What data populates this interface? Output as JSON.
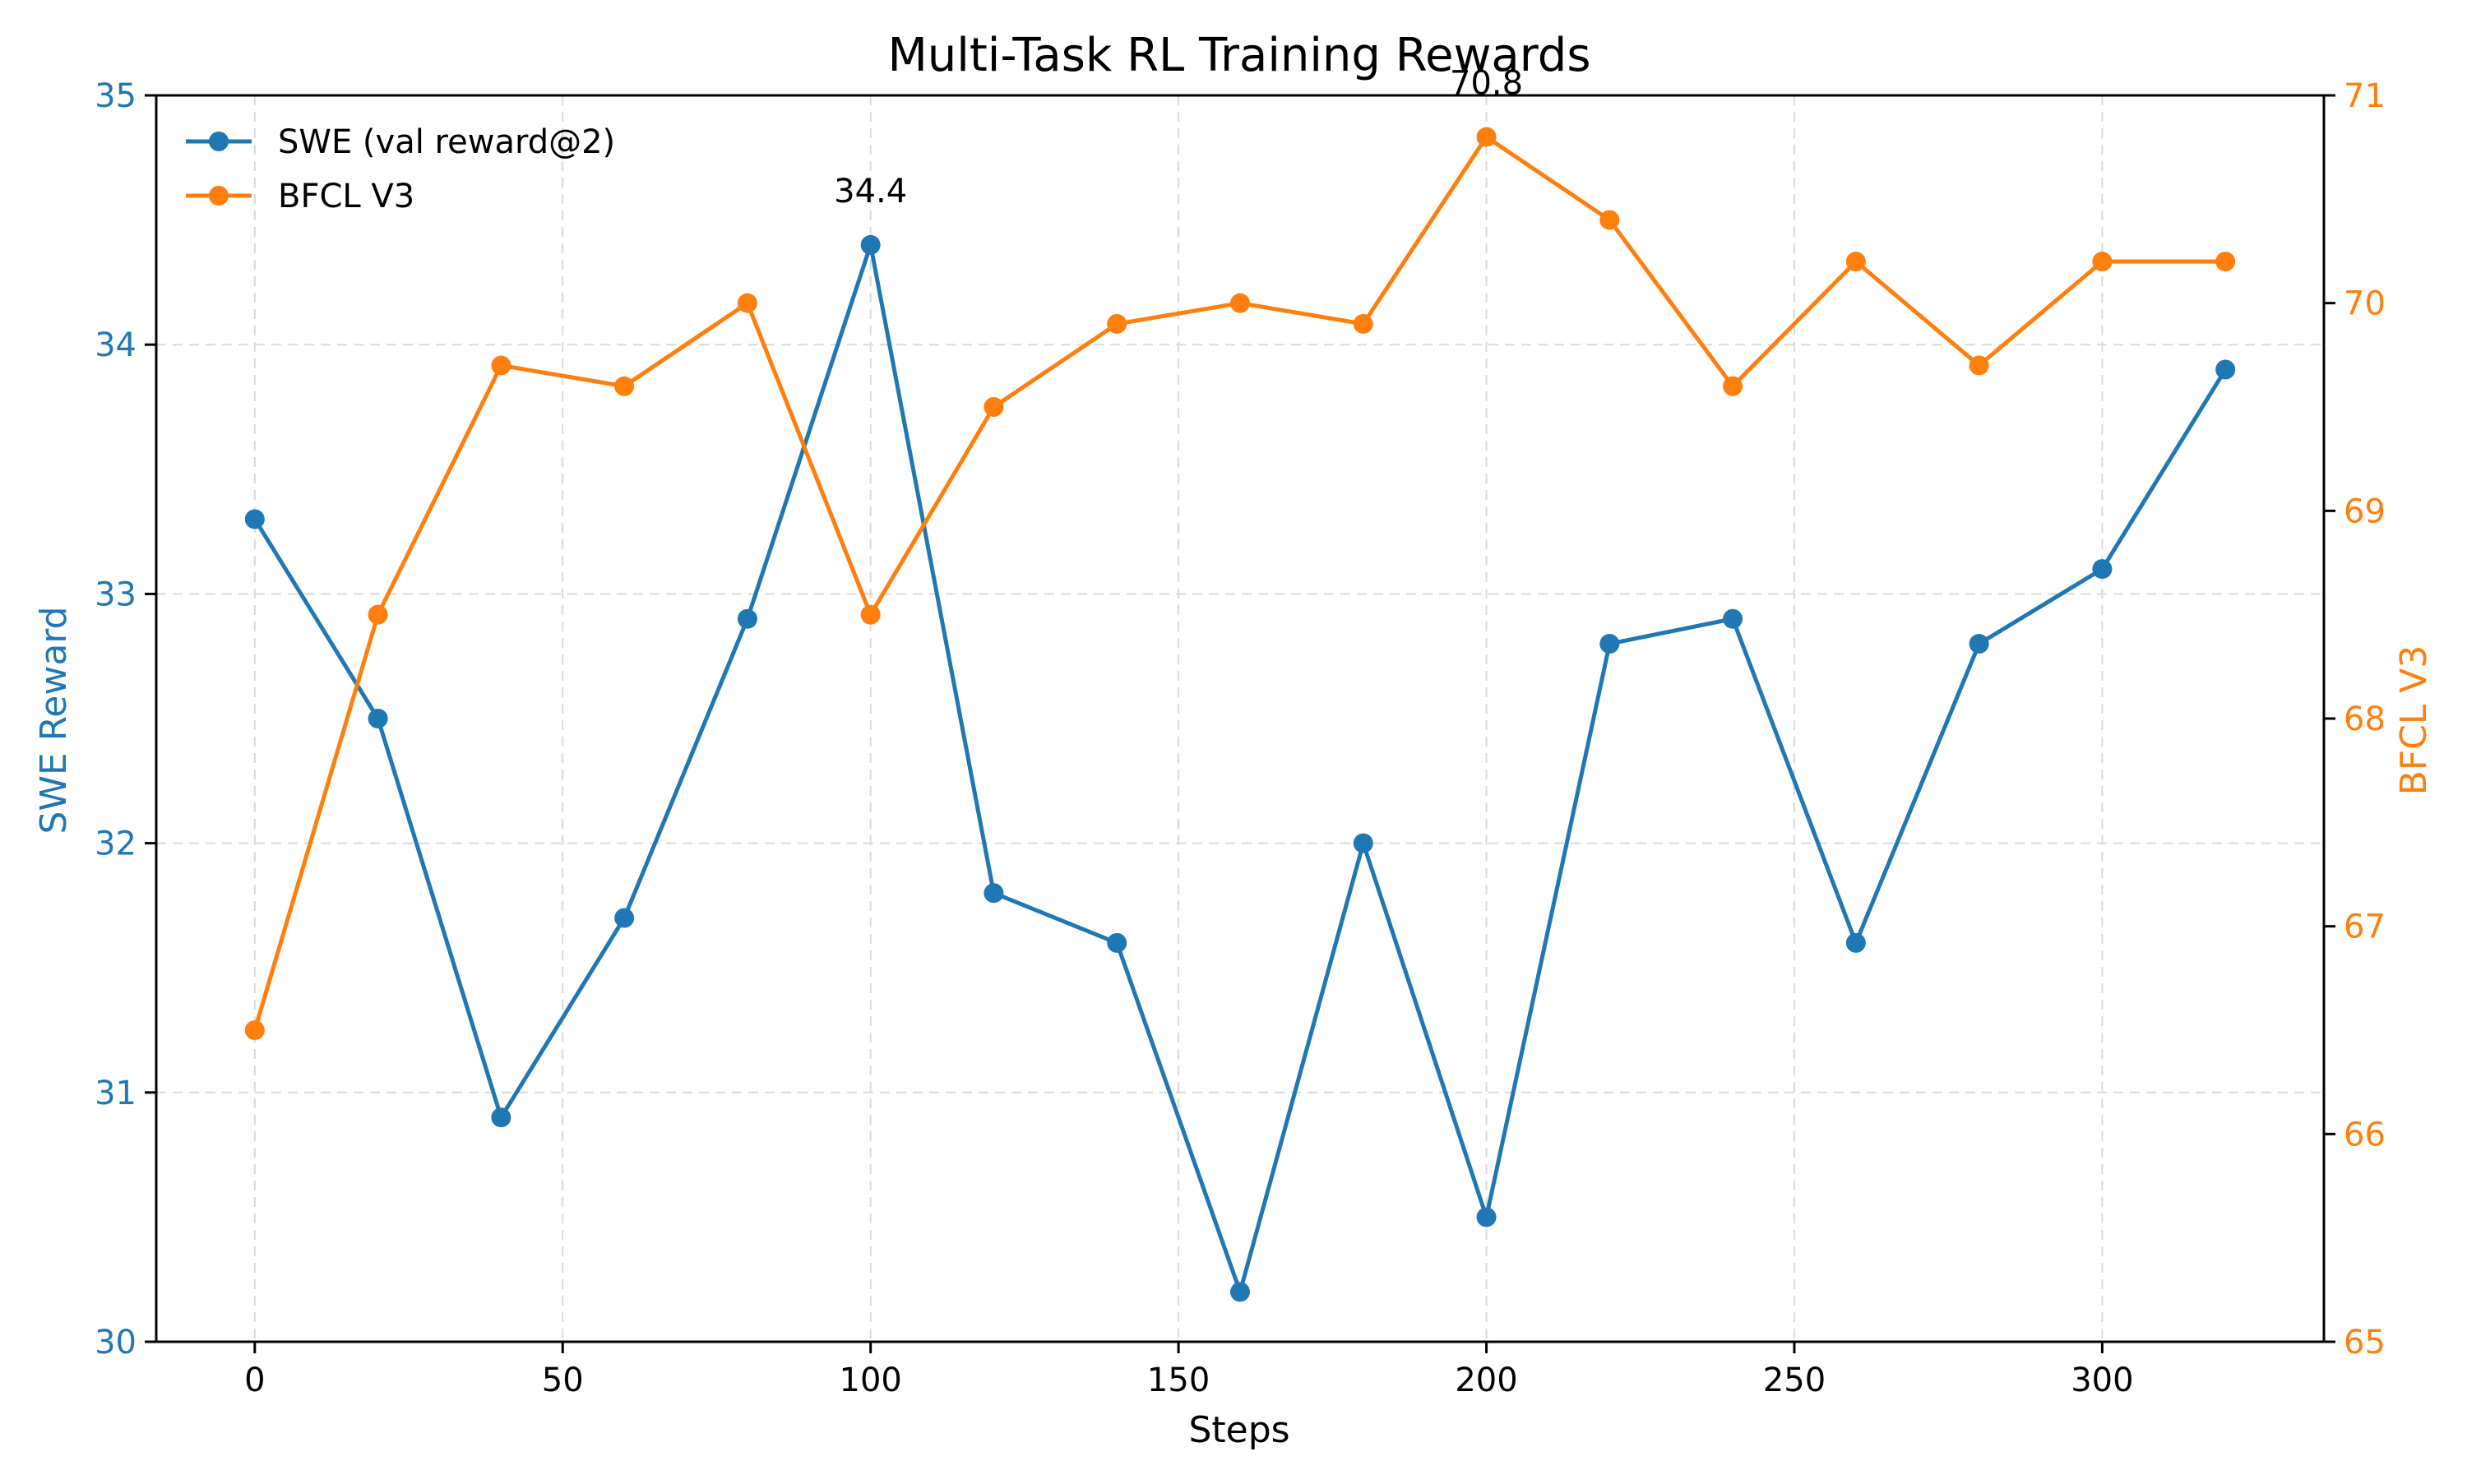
{
  "chart_data": {
    "type": "line",
    "title": "Multi-Task RL Training Rewards",
    "xlabel": "Steps",
    "ylabel_left": "SWE Reward",
    "ylabel_right": "BFCL V3",
    "xlim": [
      -16,
      336
    ],
    "ylim_left": [
      30,
      35
    ],
    "ylim_right": [
      65,
      71
    ],
    "x_ticks": [
      0,
      50,
      100,
      150,
      200,
      250,
      300
    ],
    "y_ticks_left": [
      30,
      31,
      32,
      33,
      34,
      35
    ],
    "y_ticks_right": [
      65,
      66,
      67,
      68,
      69,
      70,
      71
    ],
    "grid": true,
    "legend_position": "top-left",
    "x": [
      0,
      20,
      40,
      60,
      80,
      100,
      120,
      140,
      160,
      180,
      200,
      220,
      240,
      260,
      280,
      300,
      320
    ],
    "series": [
      {
        "name": "SWE (val reward@2)",
        "axis": "left",
        "color": "#1f77b4",
        "values": [
          33.3,
          32.5,
          30.9,
          31.7,
          32.9,
          34.4,
          31.8,
          31.6,
          30.2,
          32.0,
          30.5,
          32.8,
          32.9,
          31.6,
          32.8,
          33.1,
          33.9
        ]
      },
      {
        "name": "BFCL V3",
        "axis": "right",
        "color": "#ff7f0e",
        "values": [
          66.5,
          68.5,
          69.7,
          69.6,
          70.0,
          68.5,
          69.5,
          69.9,
          70.0,
          69.9,
          70.8,
          70.4,
          69.6,
          70.2,
          69.7,
          70.2,
          70.2
        ]
      }
    ],
    "annotations": [
      {
        "text": "34.4",
        "x": 100,
        "y": 34.4,
        "axis": "left"
      },
      {
        "text": "70.8",
        "x": 200,
        "y": 70.8,
        "axis": "right"
      }
    ]
  }
}
